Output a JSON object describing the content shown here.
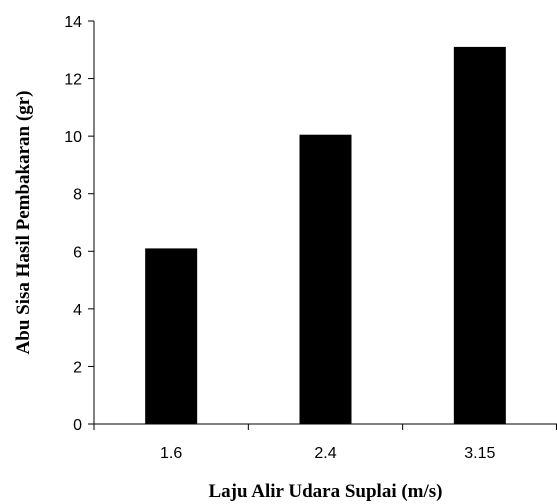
{
  "chart_data": {
    "type": "bar",
    "categories": [
      "1.6",
      "2.4",
      "3.15"
    ],
    "values": [
      6.1,
      10.05,
      13.1
    ],
    "title": "",
    "xlabel": "Laju Alir Udara Suplai (m/s)",
    "ylabel": "Abu Sisa Hasil Pembakaran (gr)",
    "ylim": [
      0,
      14
    ],
    "yticks": [
      0,
      2,
      4,
      6,
      8,
      10,
      12,
      14
    ],
    "ytick_labels": [
      "0",
      "2",
      "4",
      "6",
      "8",
      "10",
      "12",
      "14"
    ],
    "grid": false,
    "legend": "none",
    "bar_color": "#000000",
    "axis_color": "#000000"
  }
}
